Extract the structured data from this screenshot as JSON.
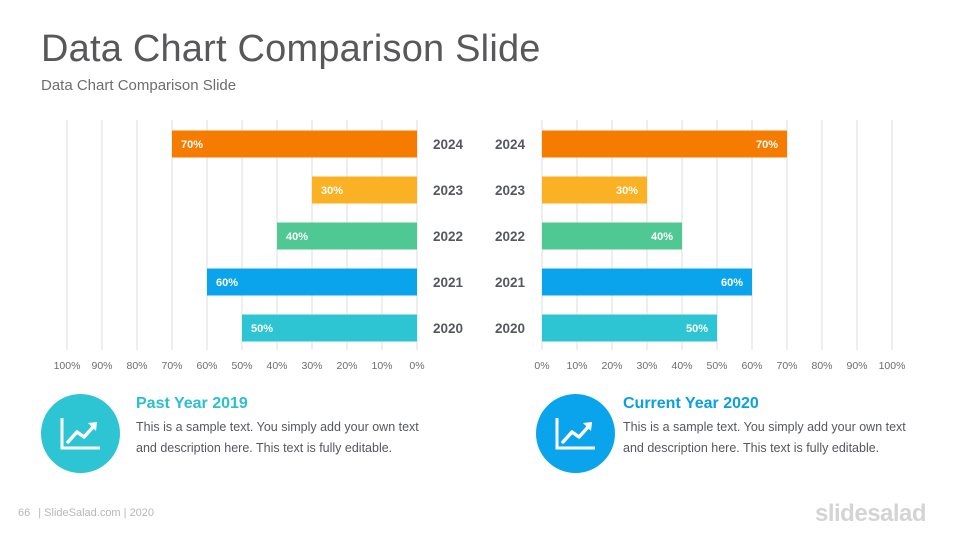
{
  "slide": {
    "title": "Data Chart Comparison Slide",
    "subtitle": "Data Chart Comparison Slide"
  },
  "chart_data": [
    {
      "type": "bar",
      "orientation": "horizontal",
      "direction": "right-to-left",
      "categories": [
        "2024",
        "2023",
        "2022",
        "2021",
        "2020"
      ],
      "values": [
        70,
        30,
        40,
        60,
        50
      ],
      "data_labels": [
        "70%",
        "30%",
        "40%",
        "60%",
        "50%"
      ],
      "colors": [
        "#f57c00",
        "#fbb124",
        "#4fc894",
        "#0aa4ec",
        "#2dc4d3"
      ],
      "xlim": [
        0,
        100
      ],
      "x_ticks": [
        "100%",
        "90%",
        "80%",
        "70%",
        "60%",
        "50%",
        "40%",
        "30%",
        "20%",
        "10%",
        "0%"
      ],
      "grid": true,
      "legend": "none"
    },
    {
      "type": "bar",
      "orientation": "horizontal",
      "direction": "left-to-right",
      "categories": [
        "2024",
        "2023",
        "2022",
        "2021",
        "2020"
      ],
      "values": [
        70,
        30,
        40,
        60,
        50
      ],
      "data_labels": [
        "70%",
        "30%",
        "40%",
        "60%",
        "50%"
      ],
      "colors": [
        "#f57c00",
        "#fbb124",
        "#4fc894",
        "#0aa4ec",
        "#2dc4d3"
      ],
      "xlim": [
        0,
        100
      ],
      "x_ticks": [
        "0%",
        "10%",
        "20%",
        "30%",
        "40%",
        "50%",
        "60%",
        "70%",
        "80%",
        "90%",
        "100%"
      ],
      "grid": true,
      "legend": "none"
    }
  ],
  "cards": [
    {
      "title": "Past Year 2019",
      "text": "This is a sample text. You simply add your own text and description here. This text is fully editable.",
      "icon": "trending-up-chart-icon",
      "circle_color": "#2dc4d3",
      "title_color": "#2bbfcf"
    },
    {
      "title": "Current Year 2020",
      "text": "This is a sample text. You simply add your own text and description here. This text is fully editable.",
      "icon": "trending-up-chart-icon",
      "circle_color": "#0aa4ec",
      "title_color": "#0a9fe3"
    }
  ],
  "footer": {
    "page_number": "66",
    "text": "| SlideSalad.com | 2020",
    "brand": "slidesalad"
  }
}
